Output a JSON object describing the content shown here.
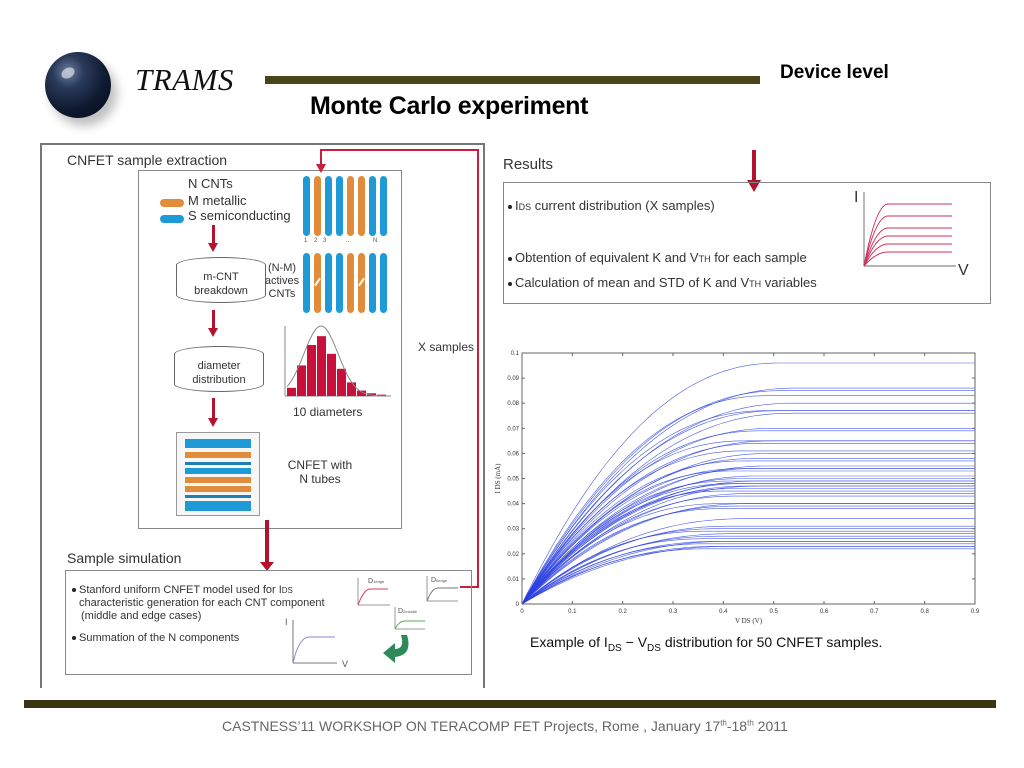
{
  "header": {
    "logo_text": "TRAMS",
    "section_label": "Device level",
    "title": "Monte Carlo experiment"
  },
  "extraction": {
    "title": "CNFET sample extraction",
    "legend": {
      "count_label": "N  CNTs",
      "metallic_label": "M metallic",
      "semiconducting_label": "S semiconducting",
      "metallic_color": "#e08c3a",
      "semiconducting_color": "#1e9bd6"
    },
    "tube_indices": [
      "1",
      "2",
      "3",
      "...",
      "N"
    ],
    "tube_types": [
      "s",
      "m",
      "s",
      "s",
      "m",
      "m",
      "s",
      "s"
    ],
    "breakdown_cylinder": "m-CNT breakdown",
    "actives_label": "(N-M) actives CNTs",
    "diameter_cylinder": "diameter distribution",
    "histogram_label": "10 diameters",
    "histogram_relative_heights": [
      0.12,
      0.45,
      0.75,
      0.88,
      0.62,
      0.4,
      0.2,
      0.08,
      0.04,
      0.02
    ],
    "cnfet_label": "CNFET with N tubes",
    "x_samples_label": "X samples"
  },
  "simulation": {
    "title": "Sample simulation",
    "bullets": [
      "Stanford uniform CNFET model used for IDS characteristic generation for each CNT component (middle and edge cases)",
      "Summation of the N components"
    ],
    "bullet1_line1": "Stanford uniform CNFET model used for I",
    "bullet1_sub": "DS",
    "bullet1_line2": "characteristic generation for each CNT component",
    "bullet1_line3": "(middle and edge cases)",
    "bullet2": "Summation of the N components",
    "mini_labels": [
      "D1edge",
      "D2middle",
      "D6edge"
    ],
    "axis_i": "I",
    "axis_v": "V"
  },
  "results": {
    "title": "Results",
    "bullet1_sub": "DS",
    "bullet1_prefix": "I",
    "bullet1_text": " current distribution (X samples)",
    "bullet2_text": "Obtention of equivalent K and V",
    "bullet2_sub": "TH",
    "bullet2_tail": " for each sample",
    "bullet3_text": "Calculation of mean and STD of K and V",
    "bullet3_sub": "TH",
    "bullet3_tail": " variables",
    "axis_i": "I",
    "axis_v": "V"
  },
  "chart_data": {
    "type": "line",
    "title": "",
    "xlabel": "V_DS (V)",
    "ylabel": "I_DS (mA)",
    "xlim": [
      0,
      0.9
    ],
    "ylim": [
      0,
      0.1
    ],
    "x_ticks": [
      "0",
      "0.1",
      "0.2",
      "0.3",
      "0.4",
      "0.5",
      "0.6",
      "0.7",
      "0.8",
      "0.9"
    ],
    "y_ticks": [
      "0",
      "0.01",
      "0.02",
      "0.03",
      "0.04",
      "0.05",
      "0.06",
      "0.07",
      "0.08",
      "0.09",
      "0.1"
    ],
    "grid": false,
    "series_color": "#2a3fe0",
    "num_series": 50,
    "saturation_currents_mA": [
      0.096,
      0.086,
      0.085,
      0.083,
      0.08,
      0.077,
      0.077,
      0.076,
      0.07,
      0.069,
      0.065,
      0.065,
      0.064,
      0.061,
      0.06,
      0.058,
      0.057,
      0.055,
      0.054,
      0.054,
      0.053,
      0.051,
      0.05,
      0.049,
      0.049,
      0.048,
      0.048,
      0.047,
      0.047,
      0.046,
      0.045,
      0.044,
      0.043,
      0.04,
      0.04,
      0.039,
      0.038,
      0.034,
      0.031,
      0.03,
      0.029,
      0.028,
      0.027,
      0.026,
      0.025,
      0.025,
      0.024,
      0.023,
      0.023,
      0.022
    ],
    "caption_prefix": "Example of I",
    "caption_sub1": "DS",
    "caption_mid": " − V",
    "caption_sub2": "DS",
    "caption_suffix": " distribution for 50 CNFET samples."
  },
  "footer": {
    "text_part1": "CASTNESS’11 WORKSHOP ON TERACOMP  FET Projects, Rome , January 17",
    "sup1": "th",
    "text_part2": "-18",
    "sup2": "th",
    "text_part3": " 2011"
  }
}
